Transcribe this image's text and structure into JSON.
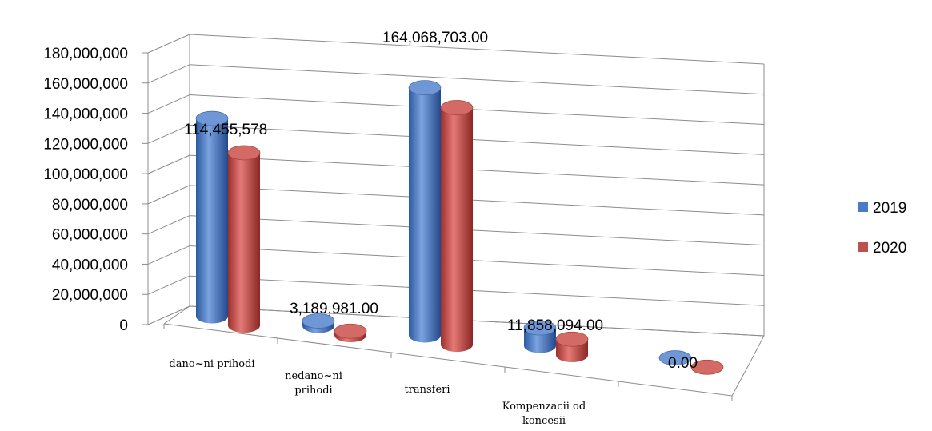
{
  "chart_data": {
    "type": "bar",
    "style": "3d-cylinder",
    "categories": [
      [
        "dano~ni prihodi"
      ],
      [
        "nedano~ni",
        "prihodi"
      ],
      [
        "transferi"
      ],
      [
        "Kompenzacii od",
        "koncesii"
      ],
      [
        ""
      ]
    ],
    "series": [
      {
        "name": "2019",
        "color": "#4a7bc4",
        "values": [
          131000000,
          3189981,
          164068703,
          11858094,
          0
        ]
      },
      {
        "name": "2020",
        "color": "#c0504d",
        "values": [
          114455578,
          2600000,
          157000000,
          10500000,
          0
        ]
      }
    ],
    "data_labels": [
      "114,455,578",
      "3,189,981.00",
      "164,068,703.00",
      "11,858,094.00",
      "0.00"
    ],
    "y_ticks": [
      "0",
      "20,000,000",
      "40,000,000",
      "60,000,000",
      "80,000,000",
      "100,000,000",
      "120,000,000",
      "140,000,000",
      "160,000,000",
      "180,000,000"
    ],
    "ylim": [
      0,
      180000000
    ],
    "grid": true,
    "legend": "right"
  }
}
